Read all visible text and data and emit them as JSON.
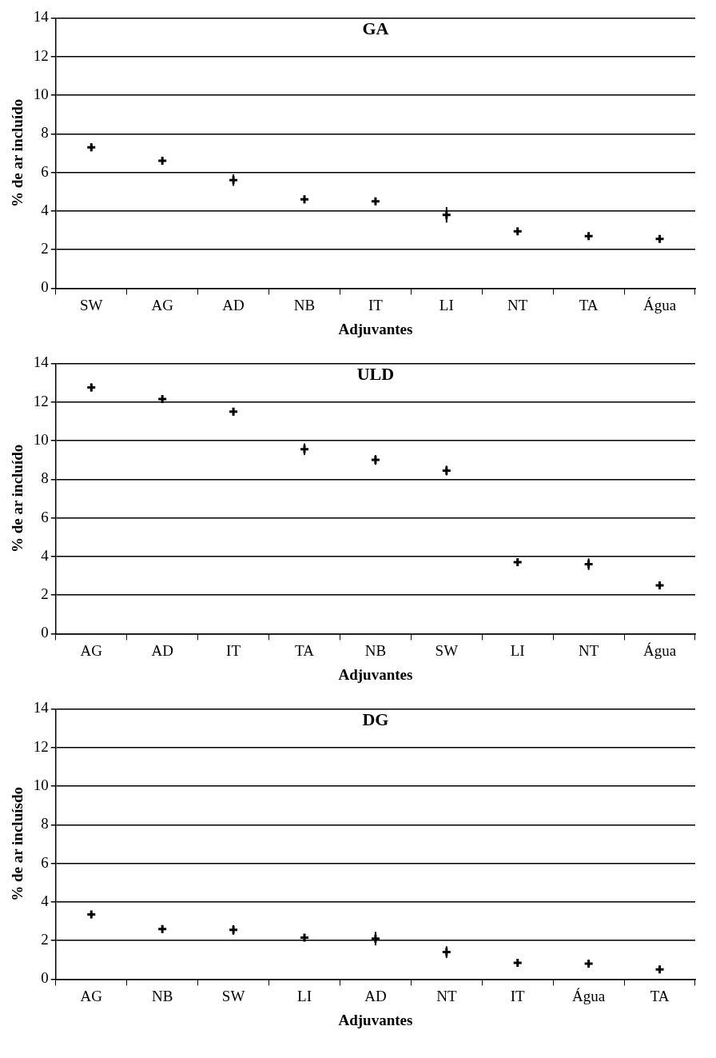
{
  "chart_data": [
    {
      "type": "scatter",
      "title": "GA",
      "xlabel": "Adjuvantes",
      "ylabel": "% de ar incluído",
      "categories": [
        "SW",
        "AG",
        "AD",
        "NB",
        "IT",
        "LI",
        "NT",
        "TA",
        "Água"
      ],
      "values": [
        7.3,
        6.6,
        5.6,
        4.6,
        4.5,
        3.8,
        2.95,
        2.7,
        2.55
      ],
      "errors": [
        0.2,
        0.05,
        0.3,
        0.2,
        0.1,
        0.4,
        0.1,
        0.1,
        0.05
      ],
      "color": "#000000",
      "ylim": [
        0,
        14
      ],
      "yticks": [
        0,
        2,
        4,
        6,
        8,
        10,
        12,
        14
      ],
      "grid": "y",
      "marker": "cross",
      "legend": false
    },
    {
      "type": "scatter",
      "title": "ULD",
      "xlabel": "Adjuvantes",
      "ylabel": "% de ar incluído",
      "categories": [
        "AG",
        "AD",
        "IT",
        "TA",
        "NB",
        "SW",
        "LI",
        "NT",
        "Água"
      ],
      "values": [
        12.75,
        12.15,
        11.5,
        9.55,
        9.0,
        8.45,
        3.7,
        3.6,
        2.5
      ],
      "errors": [
        0.2,
        0.05,
        0.2,
        0.3,
        0.25,
        0.25,
        0.15,
        0.3,
        0.1
      ],
      "color": "#000000",
      "ylim": [
        0,
        14
      ],
      "yticks": [
        0,
        2,
        4,
        6,
        8,
        10,
        12,
        14
      ],
      "grid": "y",
      "marker": "cross",
      "legend": false
    },
    {
      "type": "scatter",
      "title": "DG",
      "xlabel": "Adjuvantes",
      "ylabel": "% de ar incluísdo",
      "categories": [
        "AG",
        "NB",
        "SW",
        "LI",
        "AD",
        "NT",
        "IT",
        "Água",
        "TA"
      ],
      "values": [
        3.35,
        2.6,
        2.55,
        2.15,
        2.1,
        1.4,
        0.85,
        0.8,
        0.5
      ],
      "errors": [
        0.1,
        0.1,
        0.25,
        0.05,
        0.35,
        0.3,
        0.05,
        0.07,
        0.05
      ],
      "color": "#000000",
      "ylim": [
        0,
        14
      ],
      "yticks": [
        0,
        2,
        4,
        6,
        8,
        10,
        12,
        14
      ],
      "grid": "y",
      "marker": "cross",
      "legend": false
    }
  ]
}
